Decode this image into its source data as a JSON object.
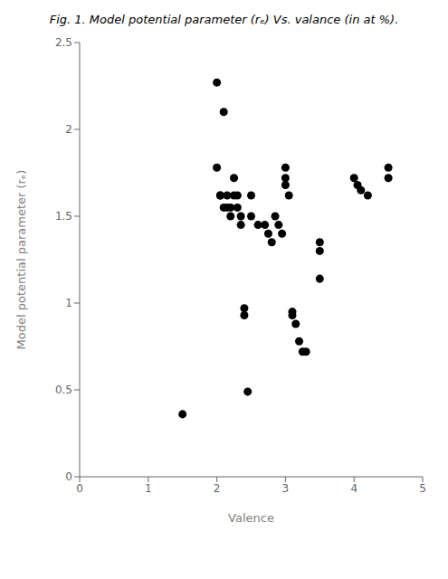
{
  "chart_data": {
    "type": "scatter",
    "title": "Fig. 1. Model potential parameter (rₑ) Vs. valance (in at %).",
    "xlabel": "Valence",
    "ylabel": "Model potential parameter (rₑ)",
    "xlim": [
      0,
      5
    ],
    "ylim": [
      0,
      2.5
    ],
    "xticks": [
      0,
      1,
      2,
      3,
      4,
      5
    ],
    "yticks": [
      0,
      0.5,
      1,
      1.5,
      2,
      2.5
    ],
    "grid": false,
    "color": "#000000",
    "x": [
      1.5,
      2.0,
      2.1,
      2.0,
      2.05,
      2.05,
      2.1,
      2.15,
      2.15,
      2.2,
      2.2,
      2.25,
      2.25,
      2.3,
      2.3,
      2.35,
      2.35,
      2.4,
      2.4,
      2.45,
      2.5,
      2.5,
      2.6,
      2.7,
      2.75,
      2.8,
      2.85,
      2.9,
      2.95,
      3.0,
      3.0,
      3.0,
      3.05,
      3.1,
      3.1,
      3.15,
      3.2,
      3.25,
      3.3,
      3.5,
      3.5,
      3.5,
      4.0,
      4.05,
      4.1,
      4.2,
      4.5,
      4.5
    ],
    "values": [
      0.36,
      2.27,
      2.1,
      1.78,
      1.62,
      1.62,
      1.55,
      1.62,
      1.55,
      1.55,
      1.5,
      1.72,
      1.62,
      1.62,
      1.55,
      1.5,
      1.45,
      0.97,
      0.93,
      0.49,
      1.62,
      1.5,
      1.45,
      1.45,
      1.4,
      1.35,
      1.5,
      1.45,
      1.4,
      1.78,
      1.72,
      1.68,
      1.62,
      0.95,
      0.93,
      0.88,
      0.78,
      0.72,
      0.72,
      1.35,
      1.3,
      1.14,
      1.72,
      1.68,
      1.65,
      1.62,
      1.78,
      1.72
    ]
  }
}
